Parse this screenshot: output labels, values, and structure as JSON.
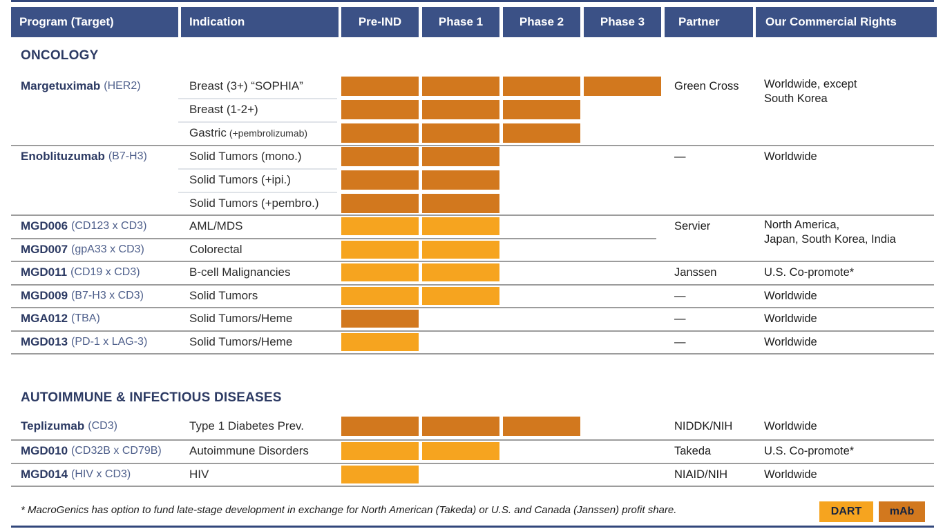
{
  "header": {
    "columns": [
      "Program (Target)",
      "Indication",
      "Pre-IND",
      "Phase 1",
      "Phase 2",
      "Phase 3",
      "Partner",
      "Our Commercial Rights"
    ]
  },
  "colors": {
    "header_bg": "#3b5186",
    "navy_text": "#2c3a63",
    "target_text": "#4e5f8b",
    "dart": "#f6a41f",
    "mab": "#d2781e",
    "divider": "#9c9c9c",
    "sub_divider": "#dfe3e8",
    "rule": "#32477b"
  },
  "footnote": "* MacroGenics has option to fund late-stage development in exchange for North American (Takeda) or U.S. and Canada (Janssen) profit share.",
  "legend": [
    {
      "label": "DART",
      "color": "#f6a41f"
    },
    {
      "label": "mAb",
      "color": "#d2781e"
    }
  ],
  "chart_data": {
    "type": "bar",
    "subtype": "pipeline-gantt",
    "phase_columns": [
      "Pre-IND",
      "Phase 1",
      "Phase 2",
      "Phase 3"
    ],
    "sections": [
      {
        "title": "ONCOLOGY",
        "programs": [
          {
            "name": "Margetuximab",
            "target": "(HER2)",
            "partner": "Green Cross",
            "rights": [
              "Worldwide, except",
              "South Korea"
            ],
            "rows": [
              {
                "indication": "Breast (3+) “SOPHIA”",
                "suffix": "",
                "phases_completed": 4,
                "molecule": "mAb"
              },
              {
                "indication": "Breast (1-2+)",
                "suffix": "",
                "phases_completed": 3,
                "molecule": "mAb"
              },
              {
                "indication": "Gastric",
                "suffix": "(+pembrolizumab)",
                "phases_completed": 3,
                "molecule": "mAb"
              }
            ]
          },
          {
            "name": "Enoblituzumab",
            "target": "(B7-H3)",
            "partner": "—",
            "rights": [
              "Worldwide"
            ],
            "rows": [
              {
                "indication": "Solid Tumors (mono.)",
                "suffix": "",
                "phases_completed": 2,
                "molecule": "mAb"
              },
              {
                "indication": "Solid Tumors (+ipi.)",
                "suffix": "",
                "phases_completed": 2,
                "molecule": "mAb"
              },
              {
                "indication": "Solid Tumors (+pembro.)",
                "suffix": "",
                "phases_completed": 2,
                "molecule": "mAb"
              }
            ]
          },
          {
            "name": "MGD006",
            "target": "(CD123 x CD3)",
            "partner": "Servier",
            "rights": [
              "North America,",
              "Japan, South Korea, India"
            ],
            "rows": [
              {
                "indication": "AML/MDS",
                "suffix": "",
                "phases_completed": 2,
                "molecule": "DART"
              }
            ]
          },
          {
            "name": "MGD007",
            "target": "(gpA33 x CD3)",
            "partner": "",
            "rights": [],
            "rows": [
              {
                "indication": "Colorectal",
                "suffix": "",
                "phases_completed": 2,
                "molecule": "DART"
              }
            ]
          },
          {
            "name": "MGD011",
            "target": "(CD19 x CD3)",
            "partner": "Janssen",
            "rights": [
              "U.S. Co-promote*"
            ],
            "rows": [
              {
                "indication": "B-cell Malignancies",
                "suffix": "",
                "phases_completed": 2,
                "molecule": "DART"
              }
            ]
          },
          {
            "name": "MGD009",
            "target": "(B7-H3 x CD3)",
            "partner": "—",
            "rights": [
              "Worldwide"
            ],
            "rows": [
              {
                "indication": "Solid Tumors",
                "suffix": "",
                "phases_completed": 2,
                "molecule": "DART"
              }
            ]
          },
          {
            "name": "MGA012",
            "target": "(TBA)",
            "partner": "—",
            "rights": [
              "Worldwide"
            ],
            "rows": [
              {
                "indication": "Solid Tumors/Heme",
                "suffix": "",
                "phases_completed": 1,
                "molecule": "mAb"
              }
            ]
          },
          {
            "name": "MGD013",
            "target": "(PD-1 x LAG-3)",
            "partner": "—",
            "rights": [
              "Worldwide"
            ],
            "rows": [
              {
                "indication": "Solid Tumors/Heme",
                "suffix": "",
                "phases_completed": 1,
                "molecule": "DART"
              }
            ]
          }
        ]
      },
      {
        "title": "AUTOIMMUNE & INFECTIOUS DISEASES",
        "programs": [
          {
            "name": "Teplizumab",
            "target": "(CD3)",
            "partner": "NIDDK/NIH",
            "rights": [
              "Worldwide"
            ],
            "rows": [
              {
                "indication": "Type 1 Diabetes Prev.",
                "suffix": "",
                "phases_completed": 3,
                "molecule": "mAb"
              }
            ]
          },
          {
            "name": "MGD010",
            "target": "(CD32B x CD79B)",
            "partner": "Takeda",
            "rights": [
              "U.S. Co-promote*"
            ],
            "rows": [
              {
                "indication": "Autoimmune Disorders",
                "suffix": "",
                "phases_completed": 2,
                "molecule": "DART"
              }
            ]
          },
          {
            "name": "MGD014",
            "target": "(HIV x CD3)",
            "partner": "NIAID/NIH",
            "rights": [
              "Worldwide"
            ],
            "rows": [
              {
                "indication": "HIV",
                "suffix": "",
                "phases_completed": 1,
                "molecule": "DART"
              }
            ]
          }
        ]
      }
    ]
  }
}
